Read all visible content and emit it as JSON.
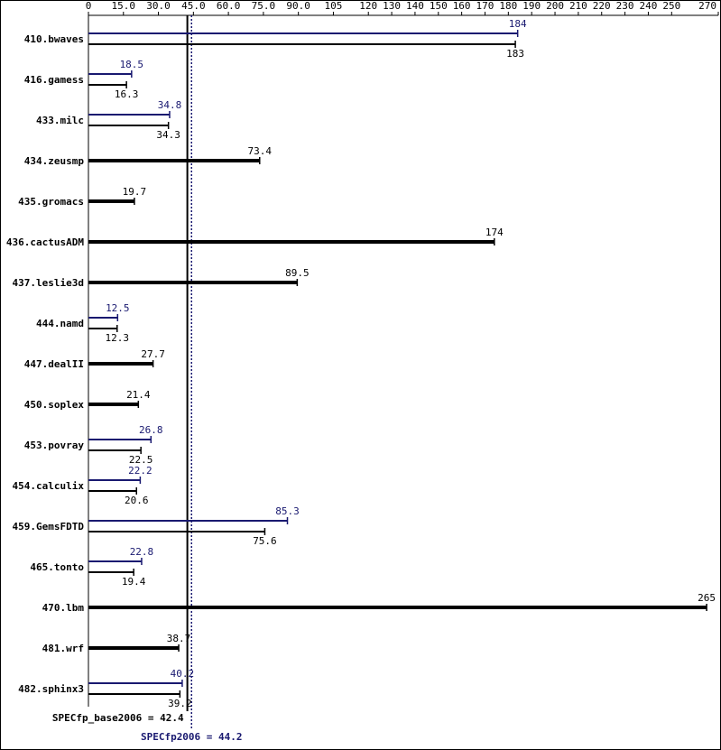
{
  "chart_data": {
    "type": "bar",
    "categories": [
      "410.bwaves",
      "416.gamess",
      "433.milc",
      "434.zeusmp",
      "435.gromacs",
      "436.cactusADM",
      "437.leslie3d",
      "444.namd",
      "447.dealII",
      "450.soplex",
      "453.povray",
      "454.calculix",
      "459.GemsFDTD",
      "465.tonto",
      "470.lbm",
      "481.wrf",
      "482.sphinx3"
    ],
    "series": [
      {
        "color": "#000000",
        "values": [
          183,
          16.3,
          34.3,
          73.4,
          19.7,
          174,
          89.5,
          12.3,
          27.7,
          21.4,
          22.5,
          20.6,
          75.6,
          19.4,
          265,
          38.7,
          39.2
        ]
      },
      {
        "color": "#191970",
        "values": [
          184,
          18.5,
          34.8,
          null,
          null,
          null,
          null,
          12.5,
          null,
          null,
          26.8,
          22.2,
          85.3,
          22.8,
          null,
          null,
          40.2
        ]
      }
    ],
    "xlim": [
      0,
      270
    ],
    "xticks": [
      0,
      {
        "value": 15,
        "label": "15.0"
      },
      {
        "value": 30,
        "label": "30.0"
      },
      {
        "value": 45,
        "label": "45.0"
      },
      {
        "value": 60,
        "label": "60.0"
      },
      {
        "value": 75,
        "label": "75.0"
      },
      {
        "value": 90,
        "label": "90.0"
      },
      105,
      120,
      130,
      140,
      150,
      160,
      170,
      180,
      190,
      200,
      210,
      220,
      230,
      240,
      250,
      270
    ],
    "reference_lines": [
      {
        "value": 42.4,
        "label": "SPECfp_base2006 = 42.4",
        "color": "#000000"
      },
      {
        "value": 44.2,
        "label": "SPECfp2006 = 44.2",
        "color": "#191970"
      }
    ]
  }
}
